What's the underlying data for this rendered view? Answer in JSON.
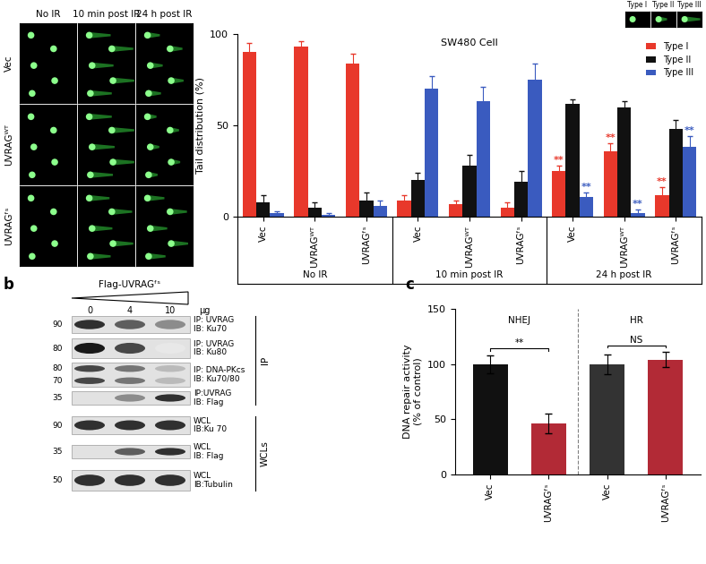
{
  "panel_labels": [
    "b",
    "c"
  ],
  "comet_images": {
    "columns": [
      "No IR",
      "10 min post IR",
      "24 h post IR"
    ],
    "rows": [
      "Vec",
      "UVRAGᵂᵀ",
      "UVRAGᶠˢ"
    ],
    "tail_types": [
      "Type I",
      "Type II",
      "Type III"
    ]
  },
  "blot": {
    "title": "Flag-UVRAGᶠˢ",
    "doses": [
      0,
      4,
      10
    ],
    "dose_unit": "μg",
    "rows": [
      {
        "mw": [
          90
        ],
        "lines": [
          "IP: UVRAG",
          "IB: Ku70"
        ],
        "band_intensity": [
          0.9,
          0.7,
          0.5
        ],
        "section": "IP"
      },
      {
        "mw": [
          80
        ],
        "lines": [
          "IP: UVRAG",
          "IB: Ku80"
        ],
        "band_intensity": [
          1.0,
          0.8,
          0.1
        ],
        "section": "IP"
      },
      {
        "mw": [
          80,
          70
        ],
        "lines": [
          "IP: DNA-PKcs",
          "IB: Ku70/80"
        ],
        "band_intensity": [
          0.8,
          0.6,
          0.3
        ],
        "section": "IP"
      },
      {
        "mw": [
          35
        ],
        "lines": [
          "IP:UVRAG",
          "IB: Flag"
        ],
        "band_intensity": [
          0.0,
          0.5,
          0.9
        ],
        "section": "IP"
      },
      {
        "mw": [
          90
        ],
        "lines": [
          "WCL",
          "IB:Ku 70"
        ],
        "band_intensity": [
          0.9,
          0.9,
          0.9
        ],
        "section": "WCLs"
      },
      {
        "mw": [
          35
        ],
        "lines": [
          "WCL",
          "IB: Flag"
        ],
        "band_intensity": [
          0.0,
          0.7,
          0.9
        ],
        "section": "WCLs"
      },
      {
        "mw": [
          50
        ],
        "lines": [
          "WCL",
          "IB:Tubulin"
        ],
        "band_intensity": [
          0.9,
          0.9,
          0.9
        ],
        "section": "WCLs"
      }
    ]
  },
  "chart_data": [
    {
      "type": "bar",
      "title": "SW480 Cell",
      "y_label": "Tail distribution (%)",
      "categories": [
        "Vec",
        "UVRAGᵂᵀ",
        "UVRAGᶠˢ",
        "Vec",
        "UVRAGᵂᵀ",
        "UVRAGᶠˢ",
        "Vec",
        "UVRAGᵂᵀ",
        "UVRAGᶠˢ"
      ],
      "groups": [
        "No IR",
        "10 min post IR",
        "24 h post IR"
      ],
      "series": [
        {
          "name": "Type I",
          "color": "#e8382b",
          "values": [
            90,
            93,
            84,
            9,
            7,
            5,
            25,
            36,
            12
          ],
          "errors": [
            5,
            3,
            5,
            3,
            2,
            3,
            3,
            4,
            4
          ],
          "marks": [
            null,
            null,
            null,
            null,
            null,
            null,
            "**",
            "**",
            "**"
          ]
        },
        {
          "name": "Type II",
          "color": "#111111",
          "values": [
            8,
            5,
            9,
            20,
            28,
            19,
            62,
            60,
            48
          ],
          "errors": [
            4,
            3,
            4,
            4,
            6,
            6,
            2,
            3,
            5
          ],
          "marks": [
            null,
            null,
            null,
            null,
            null,
            null,
            null,
            null,
            null
          ]
        },
        {
          "name": "Type III",
          "color": "#3a5bbf",
          "values": [
            2,
            1,
            6,
            70,
            63,
            75,
            11,
            2,
            38
          ],
          "errors": [
            1,
            1,
            3,
            7,
            8,
            9,
            2,
            2,
            6
          ],
          "marks": [
            null,
            null,
            null,
            null,
            null,
            null,
            "**",
            "**",
            "**"
          ]
        }
      ],
      "ylim": [
        0,
        100
      ],
      "yticks": [
        0,
        50,
        100
      ],
      "legend": "upper right"
    },
    {
      "type": "bar",
      "y_label": "DNA repair activity\n(% of control)",
      "categories": [
        "Vec",
        "UVRAGᶠˢ",
        "Vec",
        "UVRAGᶠˢ"
      ],
      "groups": [
        "NHEJ",
        "HR"
      ],
      "values": [
        100,
        46,
        100,
        104
      ],
      "errors": [
        8,
        9,
        9,
        7
      ],
      "colors": [
        "#111111",
        "#b22a36",
        "#333333",
        "#b22a36"
      ],
      "comparisons": [
        "**",
        "NS"
      ],
      "ylim": [
        0,
        150
      ],
      "yticks": [
        0,
        50,
        100,
        150
      ]
    }
  ]
}
